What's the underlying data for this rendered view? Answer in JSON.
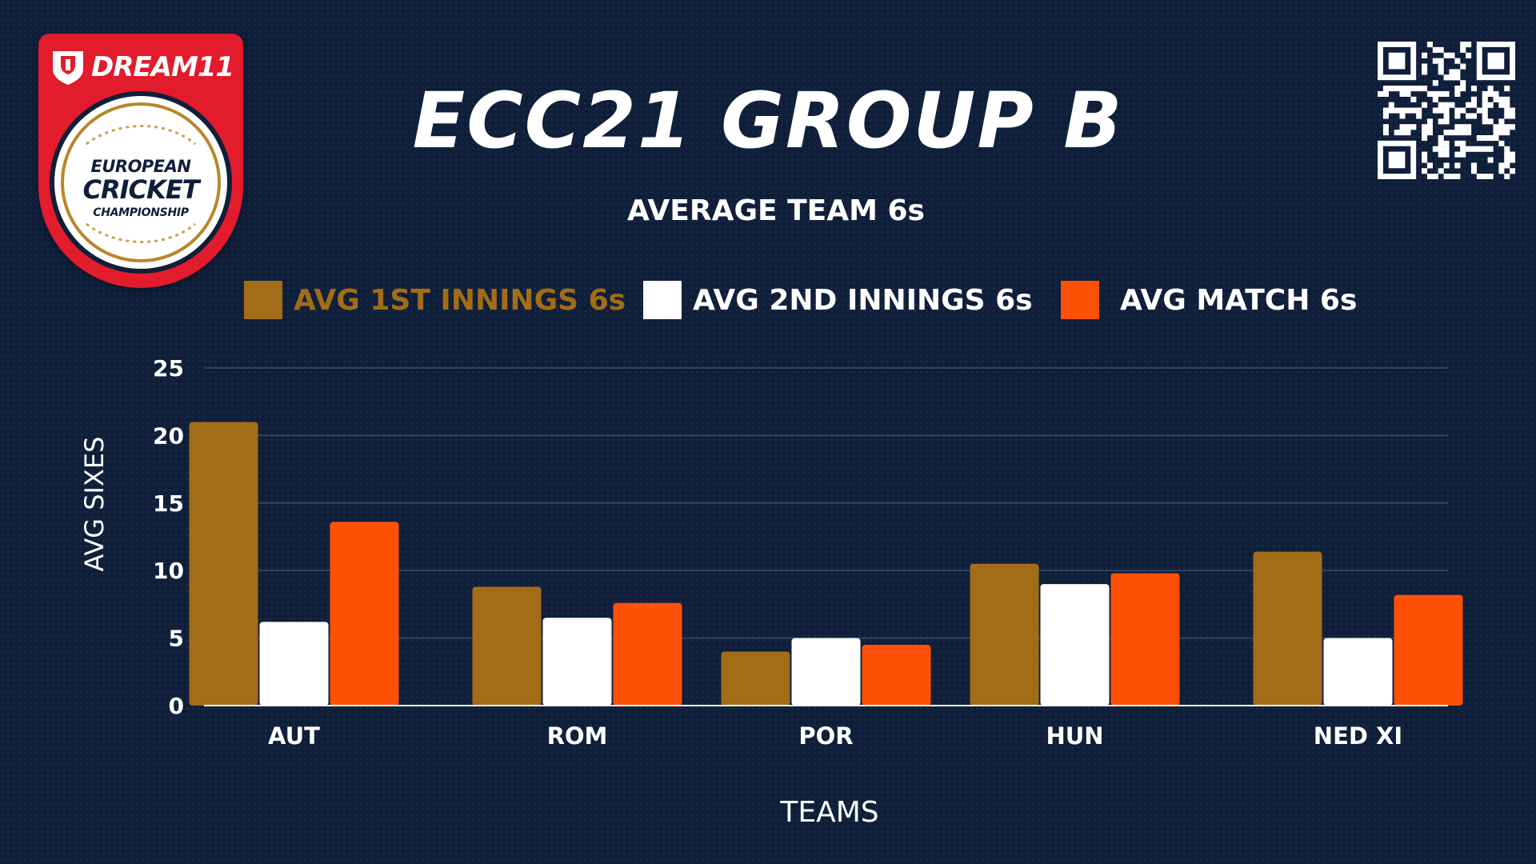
{
  "brand": {
    "sponsor": "DREAM11",
    "logo_lines": [
      "EUROPEAN",
      "CRICKET",
      "CHAMPIONSHIP"
    ]
  },
  "header": {
    "title": "ECC21 GROUP B",
    "subtitle": "AVERAGE TEAM 6s"
  },
  "qr": {
    "icon": "qr-code-icon"
  },
  "colors": {
    "background": "#0f1f3a",
    "first_innings": "#a26d16",
    "second_innings": "#ffffff",
    "match": "#ff5106",
    "grid": "#3a4d6b"
  },
  "chart_data": {
    "type": "bar",
    "title": "AVERAGE TEAM 6s",
    "xlabel": "TEAMS",
    "ylabel": "AVG SIXES",
    "categories": [
      "AUT",
      "ROM",
      "POR",
      "HUN",
      "NED XI"
    ],
    "series": [
      {
        "name": "AVG 1ST INNINGS 6s",
        "values": [
          21,
          8.8,
          4,
          10.5,
          11.4
        ]
      },
      {
        "name": "AVG 2ND INNINGS 6s",
        "values": [
          6.2,
          6.5,
          5,
          9,
          5
        ]
      },
      {
        "name": "AVG MATCH 6s",
        "values": [
          13.6,
          7.6,
          4.5,
          9.8,
          8.2
        ]
      }
    ],
    "ylim": [
      0,
      25
    ],
    "yticks": [
      0,
      5,
      10,
      15,
      20,
      25
    ],
    "grid": true,
    "legend": "top"
  }
}
